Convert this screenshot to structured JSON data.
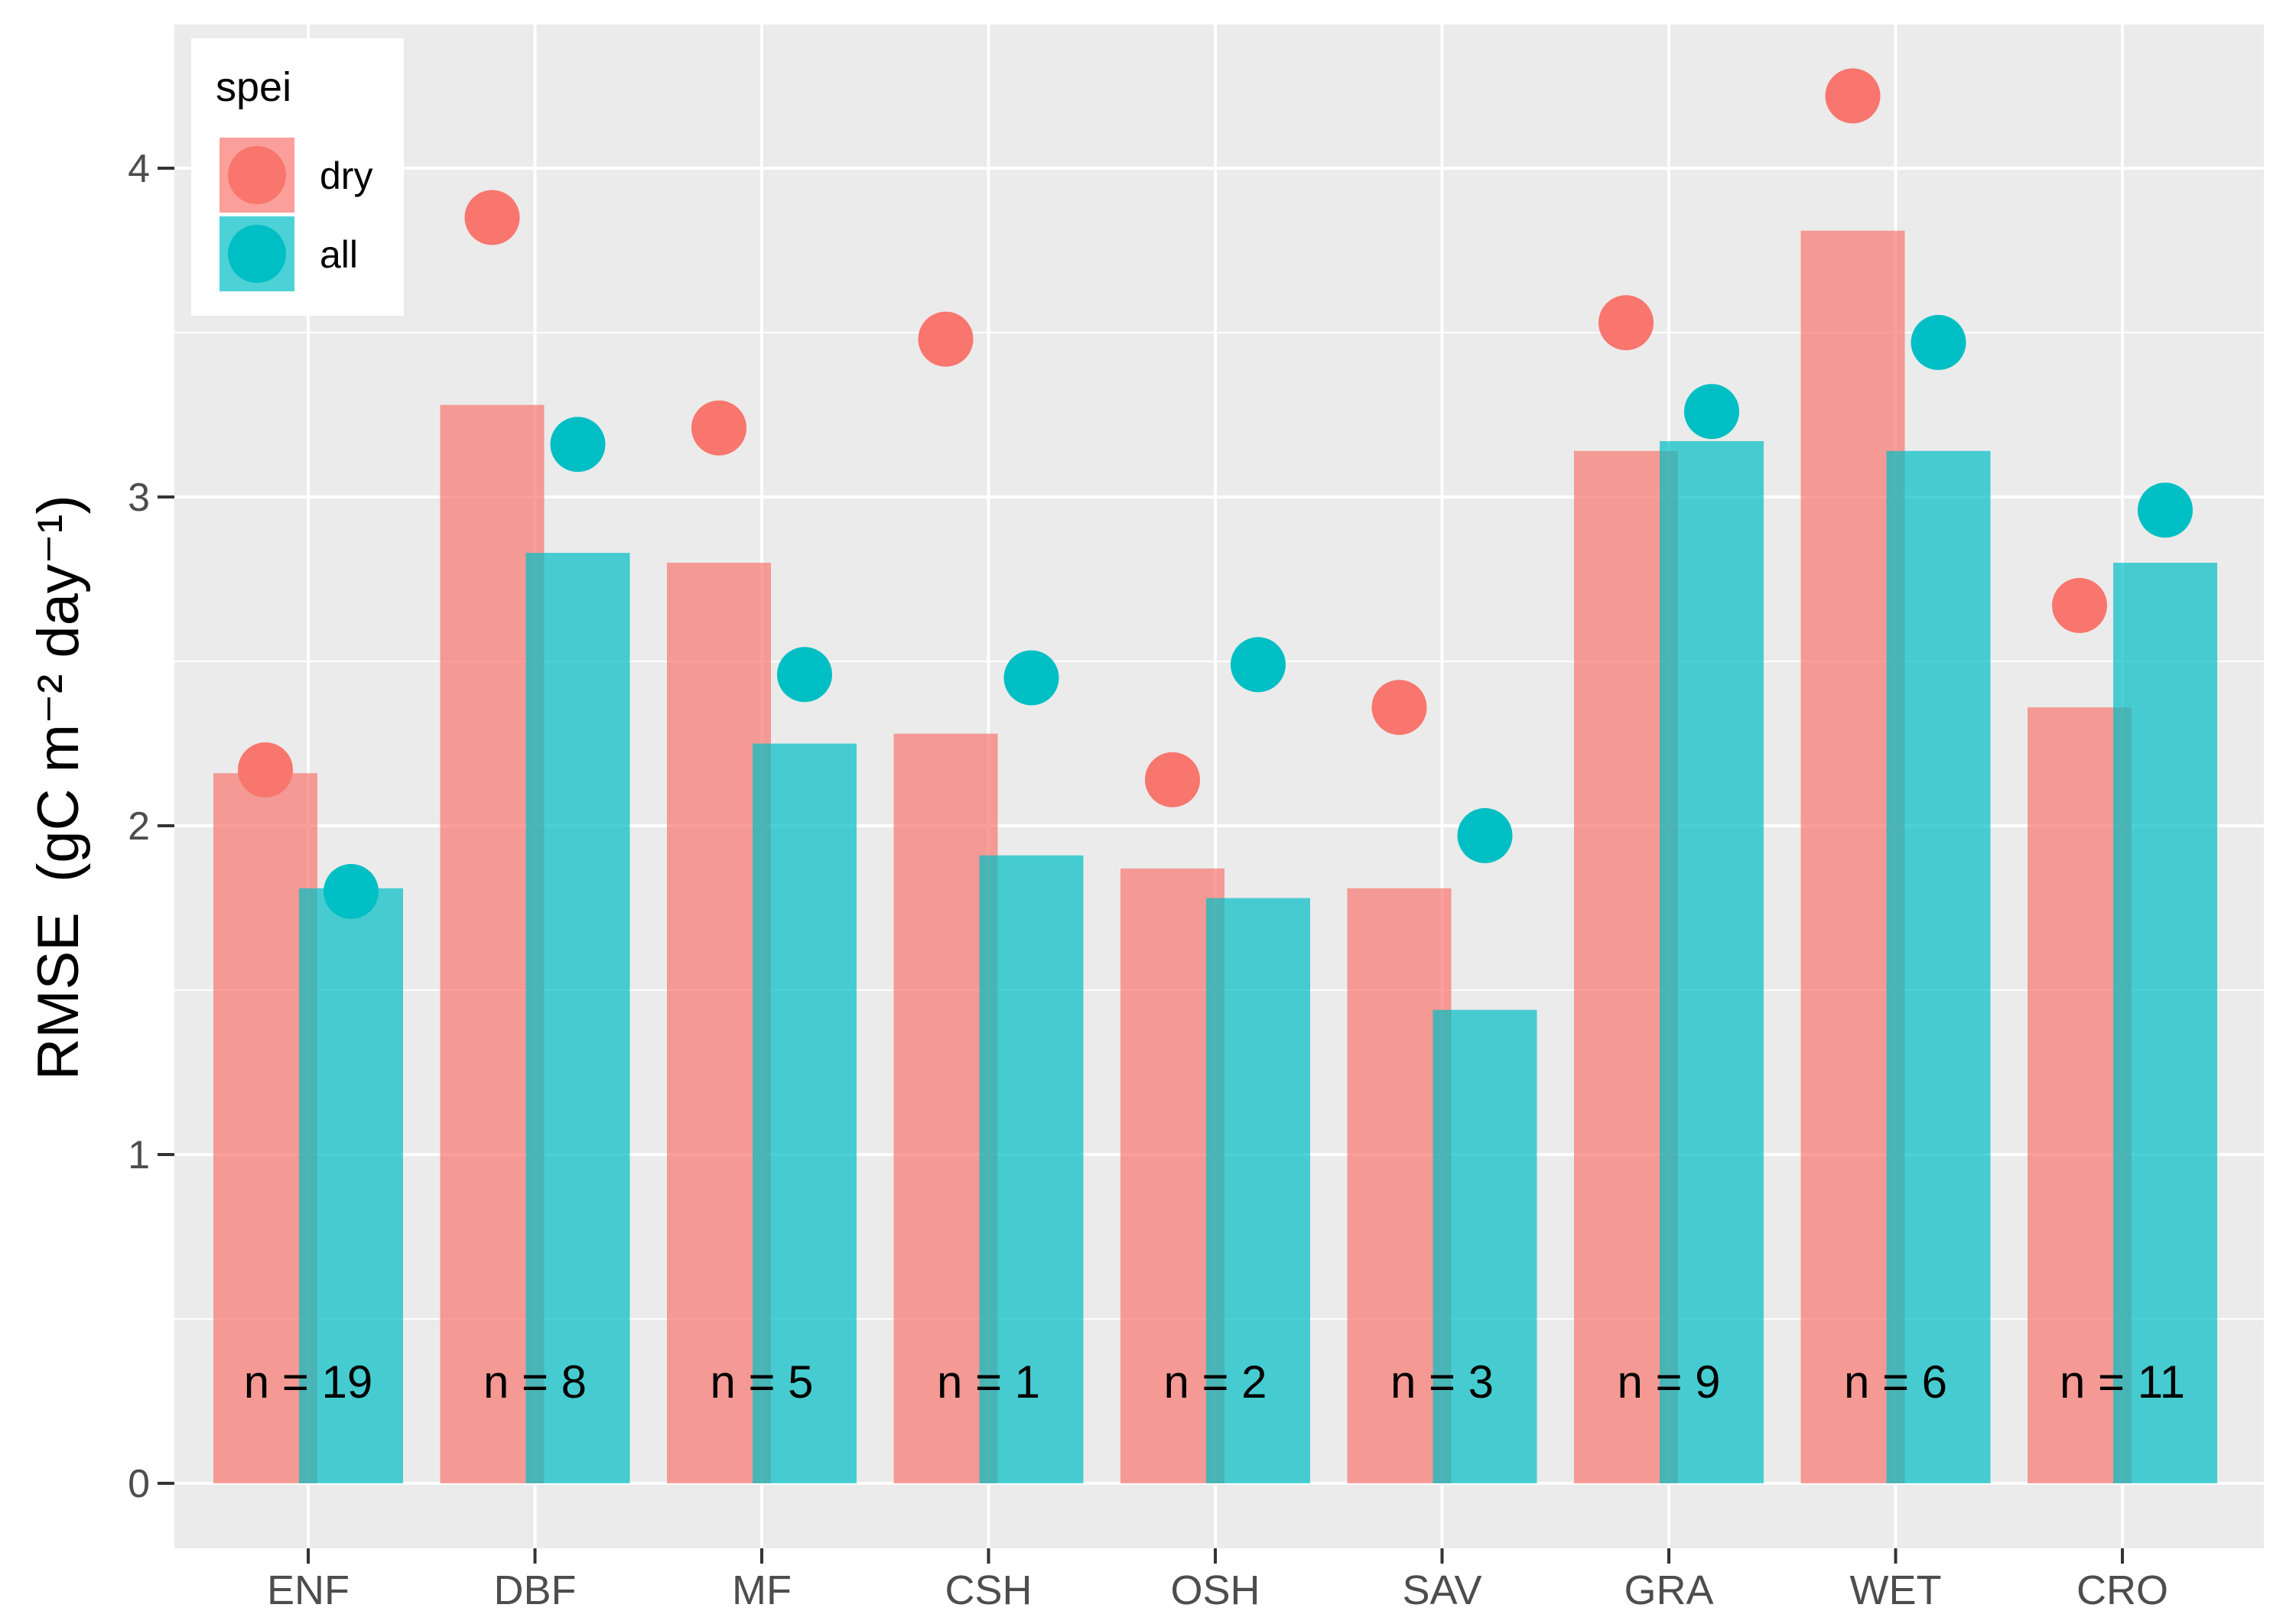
{
  "chart_data": {
    "type": "bar",
    "title": "",
    "xlabel": "",
    "ylabel": "RMSE",
    "ylabel_unit": "(gC m⁻² day⁻¹)",
    "ylim": [
      0,
      4.4
    ],
    "yticks": [
      0,
      1,
      2,
      3,
      4
    ],
    "categories": [
      "ENF",
      "DBF",
      "MF",
      "CSH",
      "OSH",
      "SAV",
      "GRA",
      "WET",
      "CRO"
    ],
    "n_labels": [
      "n = 19",
      "n = 8",
      "n = 5",
      "n = 1",
      "n = 2",
      "n = 3",
      "n = 9",
      "n = 6",
      "n = 11"
    ],
    "legend": {
      "title": "spei",
      "position": "top-left",
      "entries": [
        {
          "name": "dry",
          "color": "#F8766D"
        },
        {
          "name": "all",
          "color": "#00BFC4"
        }
      ]
    },
    "series": [
      {
        "name": "dry",
        "color": "#F8766D",
        "bar_values": [
          2.16,
          3.28,
          2.8,
          2.28,
          1.87,
          1.81,
          3.14,
          3.81,
          2.36
        ],
        "point_values": [
          2.17,
          3.85,
          3.21,
          3.48,
          2.14,
          2.36,
          3.53,
          4.22,
          2.67
        ]
      },
      {
        "name": "all",
        "color": "#00BFC4",
        "bar_values": [
          1.81,
          2.83,
          2.25,
          1.91,
          1.78,
          1.44,
          3.17,
          3.14,
          2.8
        ],
        "point_values": [
          1.8,
          3.16,
          2.46,
          2.45,
          2.49,
          1.97,
          3.26,
          3.47,
          2.96
        ]
      }
    ]
  }
}
